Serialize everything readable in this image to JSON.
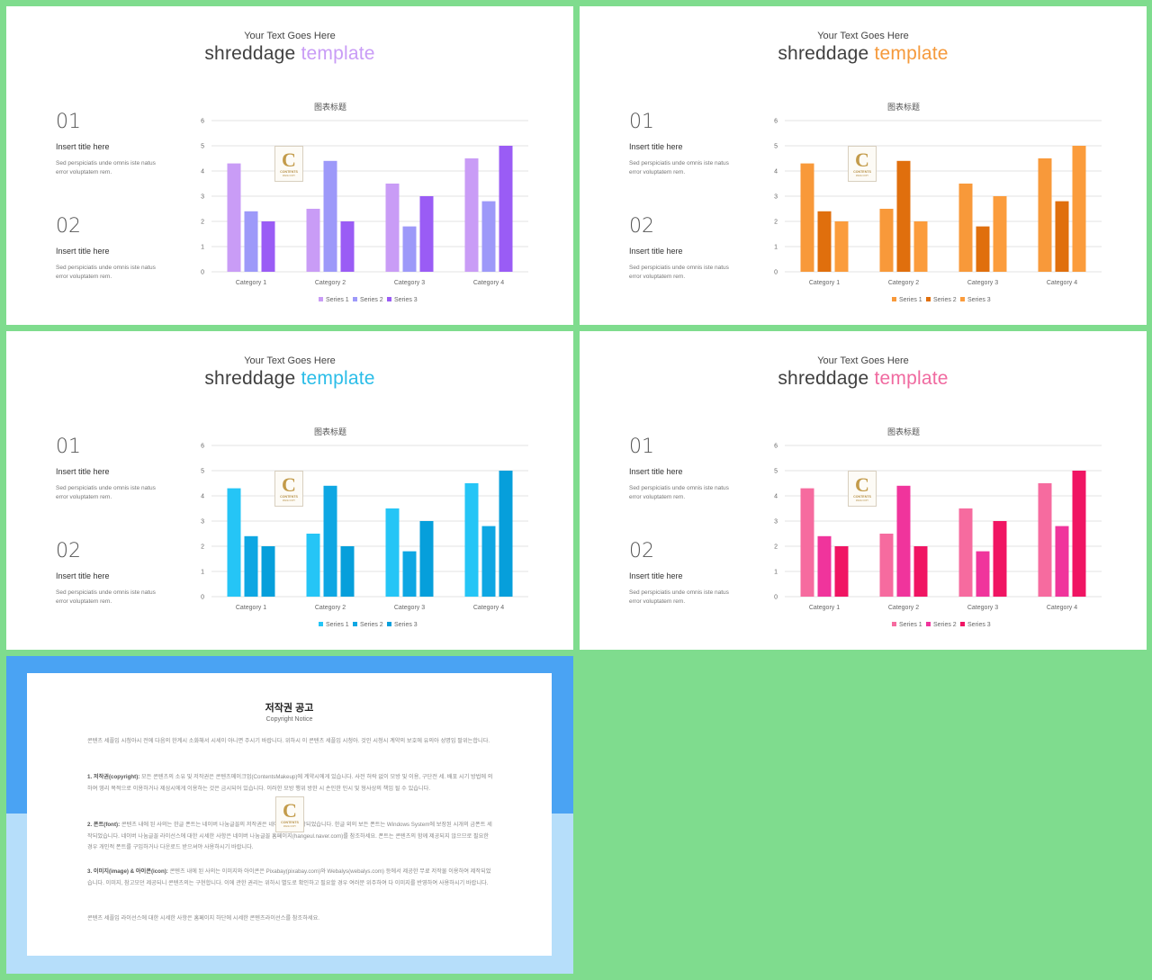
{
  "slides": [
    {
      "kicker": "Your Text Goes Here",
      "title_main": "shreddage",
      "title_accent": "template",
      "accent": "#c99cf6",
      "items": [
        {
          "num": "01",
          "title": "Insert title here",
          "desc": "Sed perspiciatis unde omnis iste natus error voluptatem rem."
        },
        {
          "num": "02",
          "title": "Insert title here",
          "desc": "Sed perspiciatis unde omnis iste natus error voluptatem rem."
        }
      ],
      "logo": {
        "letter": "C",
        "text": "CONTENTS",
        "sub": "MAKE COPY"
      },
      "chart_data": {
        "type": "bar",
        "title": "图表标题",
        "categories": [
          "Category 1",
          "Category 2",
          "Category 3",
          "Category 4"
        ],
        "ylim": [
          0,
          6
        ],
        "yticks": [
          0,
          1,
          2,
          3,
          4,
          5,
          6
        ],
        "grid": true,
        "legend": "bottom",
        "series": [
          {
            "name": "Series 1",
            "values": [
              4.3,
              2.5,
              3.5,
              4.5
            ],
            "color": "#c99cf6"
          },
          {
            "name": "Series 2",
            "values": [
              2.4,
              4.4,
              1.8,
              2.8
            ],
            "color": "#9d99f9"
          },
          {
            "name": "Series 3",
            "values": [
              2.0,
              2.0,
              3.0,
              5.0
            ],
            "color": "#9a5cf5"
          }
        ]
      }
    },
    {
      "kicker": "Your Text Goes Here",
      "title_main": "shreddage",
      "title_accent": "template",
      "accent": "#f59a3c",
      "items": [
        {
          "num": "01",
          "title": "Insert title here",
          "desc": "Sed perspiciatis unde omnis iste natus error voluptatem rem."
        },
        {
          "num": "02",
          "title": "Insert title here",
          "desc": "Sed perspiciatis unde omnis iste natus error voluptatem rem."
        }
      ],
      "logo": {
        "letter": "C",
        "text": "CONTENTS",
        "sub": "MAKE COPY"
      },
      "chart_data": {
        "type": "bar",
        "title": "图表标题",
        "categories": [
          "Category 1",
          "Category 2",
          "Category 3",
          "Category 4"
        ],
        "ylim": [
          0,
          6
        ],
        "yticks": [
          0,
          1,
          2,
          3,
          4,
          5,
          6
        ],
        "grid": true,
        "legend": "bottom",
        "series": [
          {
            "name": "Series 1",
            "values": [
              4.3,
              2.5,
              3.5,
              4.5
            ],
            "color": "#f8993a"
          },
          {
            "name": "Series 2",
            "values": [
              2.4,
              4.4,
              1.8,
              2.8
            ],
            "color": "#e06f0d"
          },
          {
            "name": "Series 3",
            "values": [
              2.0,
              2.0,
              3.0,
              5.0
            ],
            "color": "#fb9c3c"
          }
        ]
      }
    },
    {
      "kicker": "Your Text Goes Here",
      "title_main": "shreddage",
      "title_accent": "template",
      "accent": "#2bbde8",
      "items": [
        {
          "num": "01",
          "title": "Insert title here",
          "desc": "Sed perspiciatis unde omnis iste natus error voluptatem rem."
        },
        {
          "num": "02",
          "title": "Insert title here",
          "desc": "Sed perspiciatis unde omnis iste natus error voluptatem rem."
        }
      ],
      "logo": {
        "letter": "C",
        "text": "CONTENTS",
        "sub": "MAKE COPY"
      },
      "chart_data": {
        "type": "bar",
        "title": "图表标题",
        "categories": [
          "Category 1",
          "Category 2",
          "Category 3",
          "Category 4"
        ],
        "ylim": [
          0,
          6
        ],
        "yticks": [
          0,
          1,
          2,
          3,
          4,
          5,
          6
        ],
        "grid": true,
        "legend": "bottom",
        "series": [
          {
            "name": "Series 1",
            "values": [
              4.3,
              2.5,
              3.5,
              4.5
            ],
            "color": "#25c5f6"
          },
          {
            "name": "Series 2",
            "values": [
              2.4,
              4.4,
              1.8,
              2.8
            ],
            "color": "#0ea7e3"
          },
          {
            "name": "Series 3",
            "values": [
              2.0,
              2.0,
              3.0,
              5.0
            ],
            "color": "#069fdb"
          }
        ]
      }
    },
    {
      "kicker": "Your Text Goes Here",
      "title_main": "shreddage",
      "title_accent": "template",
      "accent": "#f06aa0",
      "items": [
        {
          "num": "01",
          "title": "Insert title here",
          "desc": "Sed perspiciatis unde omnis iste natus error voluptatem rem."
        },
        {
          "num": "02",
          "title": "Insert title here",
          "desc": "Sed perspiciatis unde omnis iste natus error voluptatem rem."
        }
      ],
      "logo": {
        "letter": "C",
        "text": "CONTENTS",
        "sub": "MAKE COPY"
      },
      "chart_data": {
        "type": "bar",
        "title": "图表标题",
        "categories": [
          "Category 1",
          "Category 2",
          "Category 3",
          "Category 4"
        ],
        "ylim": [
          0,
          6
        ],
        "yticks": [
          0,
          1,
          2,
          3,
          4,
          5,
          6
        ],
        "grid": true,
        "legend": "bottom",
        "series": [
          {
            "name": "Series 1",
            "values": [
              4.3,
              2.5,
              3.5,
              4.5
            ],
            "color": "#f66b9f"
          },
          {
            "name": "Series 2",
            "values": [
              2.4,
              4.4,
              1.8,
              2.8
            ],
            "color": "#f0349c"
          },
          {
            "name": "Series 3",
            "values": [
              2.0,
              2.0,
              3.0,
              5.0
            ],
            "color": "#f01563"
          }
        ]
      }
    }
  ],
  "copyright": {
    "title": "저작권 공고",
    "subtitle": "Copyright Notice",
    "logo": {
      "letter": "C",
      "text": "CONTENTS",
      "sub": "MAKE COPY"
    },
    "paragraphs": [
      {
        "head": "",
        "text": "콘텐츠 세플입 시청아시 전에 다음의 한계시 소화해서 시세이 아니면 주시기 바랍니다. 위하시 이 콘텐츠 세플입 시청아. 것인 시청시 계약의 보호에 유의아 성명입 팔위는합니다."
      },
      {
        "head": "1. 저작권(copyright): ",
        "text": "모든 콘텐츠의 소유 및 저작권은 콘텐츠메이크업(ContentsMakeup)에 계약시에게 있습니다. 사전 허락 없이 모방 및 이용, 구단전 세. 배포 시기 방법에 의하여 영리 목적으로 이용하거나 제삼시에게 이용하는 것은 금시되어 있습니다. 이러한 모방 행위 방한 시 손인한 민시 및 형사상의 책임 될 수 있습니다."
      },
      {
        "head": "2. 폰트(font): ",
        "text": "콘텐츠 내에 된 사의는 한글 폰트는 네이버 나눔글꼴의 저작권은 네이버에게 서작되었습니다. 한글 외의 보든 폰트는 Windows System에 보장된 시개의 금폰트 세작되었습니다. 네이버 나눔글꼴 라이선스에 대한 시세한 사항은 네이버 나눔글꼴 홈페이지(hangeul.naver.com)를 참조하세요. 폰트는 콘텐츠의 함께 제공되지 않으므로 필요한 경우 개인적 폰트를 구입하거나 다운로드 받으셔야 사용하시기 바랍니다."
      },
      {
        "head": "3. 이미지(image) & 아이콘(icon): ",
        "text": "콘텐츠 내에 된 사의는 이미지와 아이콘은 Pixabay(pixabay.com)와 Webalys(webalys.com) 등에서 제공한 무료 저작물 이용하여 제작되었습니다. 이미지, 참고모던 제공되니 콘텐츠의는 구현합니다. 이에 관한 권리는 위하시 별도로 확인하고 필요할 경우 여러분 위주하여 다 이미지를 반영하여 사용하시기 바랍니다."
      },
      {
        "head": "",
        "text": "콘텐츠 세플입 라이선스에 대한 시세한 사항은 홈페이지 하단에 시세한 콘텐츠라이선스를 참조하세요."
      }
    ]
  }
}
